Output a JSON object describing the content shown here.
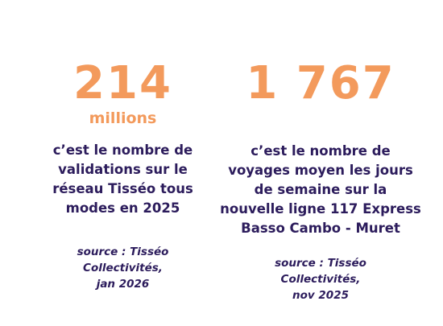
{
  "stats": [
    {
      "value": "214",
      "unit": "millions",
      "description_lines": [
        "c’est le nombre de",
        "validations sur le",
        "réseau Tisséo tous",
        "modes en 2025"
      ],
      "source_lines": [
        "source : Tisséo",
        "Collectivités,",
        "jan 2026"
      ]
    },
    {
      "value": "1 767",
      "description_lines": [
        "c’est le nombre de",
        "voyages moyen les jours",
        "de semaine sur la",
        "nouvelle ligne 117 Express",
        "Basso Cambo - Muret"
      ],
      "source_lines": [
        "source : Tisséo",
        "Collectivités,",
        "nov 2025"
      ]
    }
  ],
  "colors": {
    "accent": "#f39a5c",
    "text": "#2c1c5c",
    "background": "#ffffff"
  }
}
